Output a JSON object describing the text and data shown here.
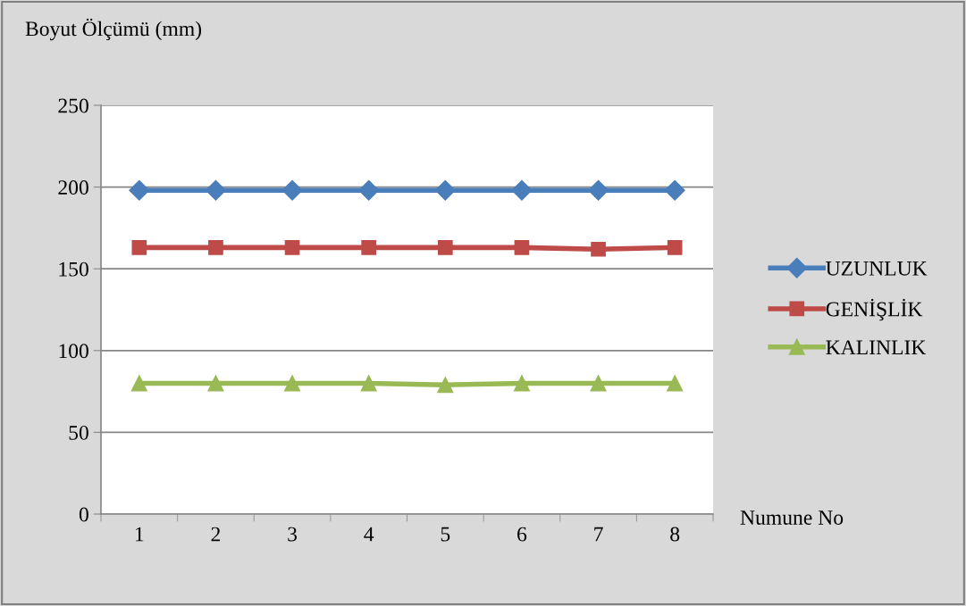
{
  "chart_data": {
    "type": "line",
    "ylabel": "Boyut Ölçümü (mm)",
    "xlabel": "Numune No",
    "categories": [
      "1",
      "2",
      "3",
      "4",
      "5",
      "6",
      "7",
      "8"
    ],
    "series": [
      {
        "name": "UZUNLUK",
        "color": "#4a7ebb",
        "marker": "diamond",
        "values": [
          198,
          198,
          198,
          198,
          198,
          198,
          198,
          198
        ]
      },
      {
        "name": "GENİŞLİK",
        "color": "#be4b48",
        "marker": "square",
        "values": [
          163,
          163,
          163,
          163,
          163,
          163,
          162,
          163
        ]
      },
      {
        "name": "KALINLIK",
        "color": "#98b954",
        "marker": "triangle",
        "values": [
          80,
          80,
          80,
          80,
          79,
          80,
          80,
          80
        ]
      }
    ],
    "ylim": [
      0,
      250
    ],
    "yticks": [
      0,
      50,
      100,
      150,
      200,
      250
    ],
    "grid": "y",
    "legend": "right",
    "line_style": "solid"
  }
}
